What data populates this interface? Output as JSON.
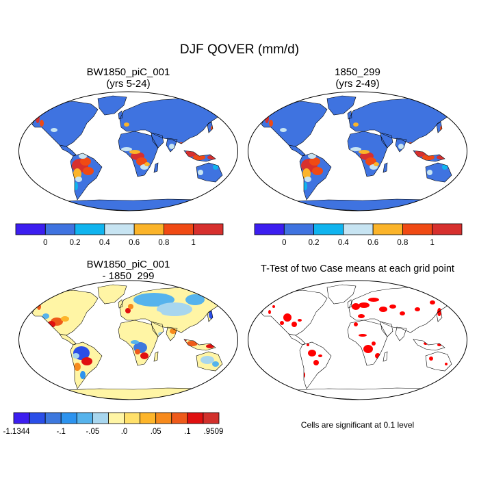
{
  "figure_title": "DJF QOVER (mm/d)",
  "panels": [
    {
      "title_line1": "BW1850_piC_001",
      "title_line2": "(yrs 5-24)"
    },
    {
      "title_line1": "1850_299",
      "title_line2": "(yrs 2-49)"
    },
    {
      "title_line1": "BW1850_piC_001",
      "title_line2": "- 1850_299"
    },
    {
      "title_line1": "T-Test of two Case means at each grid point",
      "title_line2": ""
    }
  ],
  "colorbar_abs": {
    "colors": [
      "#3c1ef0",
      "#3f73e0",
      "#10b4ef",
      "#c7e4f2",
      "#fbb42a",
      "#f04a14",
      "#d7302e"
    ],
    "labels": [
      "0",
      "0.2",
      "0.4",
      "0.6",
      "0.8",
      "1"
    ]
  },
  "colorbar_diff": {
    "colors": [
      "#3c1ef0",
      "#2a4ee8",
      "#3d78de",
      "#2c93ef",
      "#56b3ec",
      "#a8d6ee",
      "#fff5a5",
      "#ffe06a",
      "#fdb52a",
      "#f78a1c",
      "#ee5a1a",
      "#e01010",
      "#d2302c"
    ],
    "labels": [
      "-1.1344",
      "-.1",
      "-.05",
      ".0",
      ".05",
      ".1",
      ".9509"
    ]
  },
  "significance_note": "Cells are significant at 0.1 level",
  "map_colors": {
    "ocean": "#ffffff",
    "land_abs_base": "#3f73e0",
    "land_diff_base": "#fff5a5",
    "significant": "#ff0000",
    "outline": "#000000"
  }
}
